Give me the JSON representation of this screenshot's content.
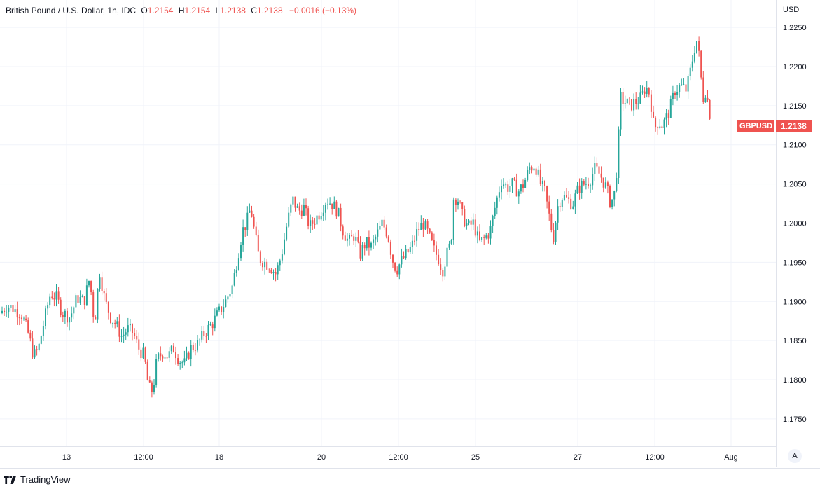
{
  "legend": {
    "symbol": "British Pound / U.S. Dollar, 1h, IDC",
    "o_label": "O",
    "o": "1.2154",
    "h_label": "H",
    "h": "1.2154",
    "l_label": "L",
    "l": "1.2138",
    "c_label": "C",
    "c": "1.2138",
    "change": "−0.0016 (−0.13%)"
  },
  "currency": "USD",
  "last_price_tag": {
    "symbol": "GBPUSD",
    "price": "1.2138"
  },
  "auto_button": "A",
  "footer": {
    "brand": "TradingView"
  },
  "colors": {
    "up": "#26a69a",
    "down": "#ef5350",
    "grid": "#f0f3fa",
    "axis": "#e0e3eb"
  },
  "chart_data": {
    "type": "candlestick",
    "title": "British Pound / U.S. Dollar, 1h, IDC",
    "ylabel": "USD",
    "ylim": [
      1.1715,
      1.2285
    ],
    "y_ticks": [
      "1.2250",
      "1.2200",
      "1.2150",
      "1.2100",
      "1.2050",
      "1.2000",
      "1.1950",
      "1.1900",
      "1.1850",
      "1.1800",
      "1.1750"
    ],
    "x_ticks": [
      "13",
      "12:00",
      "18",
      "20",
      "12:00",
      "25",
      "27",
      "12:00",
      "Aug"
    ],
    "grid": true,
    "close_path": [
      [
        0,
        1.1885
      ],
      [
        10,
        1.1895
      ],
      [
        20,
        1.189
      ],
      [
        30,
        1.1885
      ],
      [
        40,
        1.186
      ],
      [
        48,
        1.183
      ],
      [
        55,
        1.184
      ],
      [
        63,
        1.1875
      ],
      [
        72,
        1.191
      ],
      [
        80,
        1.1905
      ],
      [
        90,
        1.1885
      ],
      [
        100,
        1.188
      ],
      [
        110,
        1.1905
      ],
      [
        120,
        1.19
      ],
      [
        128,
        1.193
      ],
      [
        135,
        1.187
      ],
      [
        142,
        1.194
      ],
      [
        150,
        1.19
      ],
      [
        158,
        1.188
      ],
      [
        166,
        1.187
      ],
      [
        174,
        1.1855
      ],
      [
        182,
        1.1865
      ],
      [
        190,
        1.186
      ],
      [
        198,
        1.184
      ],
      [
        206,
        1.183
      ],
      [
        212,
        1.179
      ],
      [
        218,
        1.1785
      ],
      [
        224,
        1.1825
      ],
      [
        232,
        1.1835
      ],
      [
        240,
        1.183
      ],
      [
        248,
        1.184
      ],
      [
        256,
        1.1825
      ],
      [
        264,
        1.182
      ],
      [
        272,
        1.184
      ],
      [
        282,
        1.1845
      ],
      [
        292,
        1.186
      ],
      [
        302,
        1.187
      ],
      [
        312,
        1.1885
      ],
      [
        322,
        1.19
      ],
      [
        332,
        1.192
      ],
      [
        340,
        1.196
      ],
      [
        346,
        1.199
      ],
      [
        352,
        1.2
      ],
      [
        358,
        1.202
      ],
      [
        364,
        1.1985
      ],
      [
        370,
        1.1955
      ],
      [
        378,
        1.195
      ],
      [
        386,
        1.1945
      ],
      [
        394,
        1.1935
      ],
      [
        402,
        1.196
      ],
      [
        410,
        1.2
      ],
      [
        418,
        1.203
      ],
      [
        426,
        1.2015
      ],
      [
        434,
        1.202
      ],
      [
        442,
        1.1995
      ],
      [
        450,
        1.2005
      ],
      [
        458,
        1.2015
      ],
      [
        466,
        1.203
      ],
      [
        474,
        1.2025
      ],
      [
        482,
        1.2015
      ],
      [
        490,
        1.199
      ],
      [
        498,
        1.1975
      ],
      [
        506,
        1.1985
      ],
      [
        514,
        1.196
      ],
      [
        522,
        1.1975
      ],
      [
        530,
        1.197
      ],
      [
        538,
        1.1985
      ],
      [
        546,
        1.2
      ],
      [
        554,
        1.1985
      ],
      [
        560,
        1.1955
      ],
      [
        566,
        1.194
      ],
      [
        572,
        1.195
      ],
      [
        580,
        1.196
      ],
      [
        588,
        1.197
      ],
      [
        596,
        1.199
      ],
      [
        604,
        1.2
      ],
      [
        612,
        1.1985
      ],
      [
        620,
        1.1965
      ],
      [
        626,
        1.1955
      ],
      [
        632,
        1.194
      ],
      [
        638,
        1.196
      ],
      [
        644,
        1.1975
      ],
      [
        648,
        1.2035
      ],
      [
        654,
        1.203
      ],
      [
        660,
        1.201
      ],
      [
        668,
        1.1995
      ],
      [
        676,
        1.2
      ],
      [
        684,
        1.1975
      ],
      [
        692,
        1.198
      ],
      [
        700,
        1.199
      ],
      [
        708,
        1.2025
      ],
      [
        716,
        1.2055
      ],
      [
        724,
        1.2045
      ],
      [
        732,
        1.205
      ],
      [
        740,
        1.204
      ],
      [
        748,
        1.205
      ],
      [
        756,
        1.207
      ],
      [
        764,
        1.2075
      ],
      [
        772,
        1.205
      ],
      [
        778,
        1.204
      ],
      [
        784,
        1.201
      ],
      [
        790,
        1.198
      ],
      [
        796,
        1.202
      ],
      [
        802,
        1.2035
      ],
      [
        810,
        1.203
      ],
      [
        818,
        1.2025
      ],
      [
        826,
        1.2045
      ],
      [
        834,
        1.205
      ],
      [
        842,
        1.2055
      ],
      [
        850,
        1.207
      ],
      [
        858,
        1.206
      ],
      [
        866,
        1.2045
      ],
      [
        872,
        1.2025
      ],
      [
        878,
        1.204
      ],
      [
        882,
        1.2085
      ],
      [
        886,
        1.216
      ],
      [
        892,
        1.2155
      ],
      [
        900,
        1.215
      ],
      [
        908,
        1.2155
      ],
      [
        916,
        1.216
      ],
      [
        922,
        1.2175
      ],
      [
        928,
        1.2165
      ],
      [
        934,
        1.212
      ],
      [
        940,
        1.213
      ],
      [
        946,
        1.2125
      ],
      [
        952,
        1.2135
      ],
      [
        958,
        1.215
      ],
      [
        964,
        1.217
      ],
      [
        972,
        1.2175
      ],
      [
        980,
        1.217
      ],
      [
        986,
        1.2195
      ],
      [
        992,
        1.2225
      ],
      [
        996,
        1.2235
      ],
      [
        1000,
        1.2195
      ],
      [
        1004,
        1.216
      ],
      [
        1008,
        1.217
      ],
      [
        1014,
        1.2138
      ]
    ]
  }
}
